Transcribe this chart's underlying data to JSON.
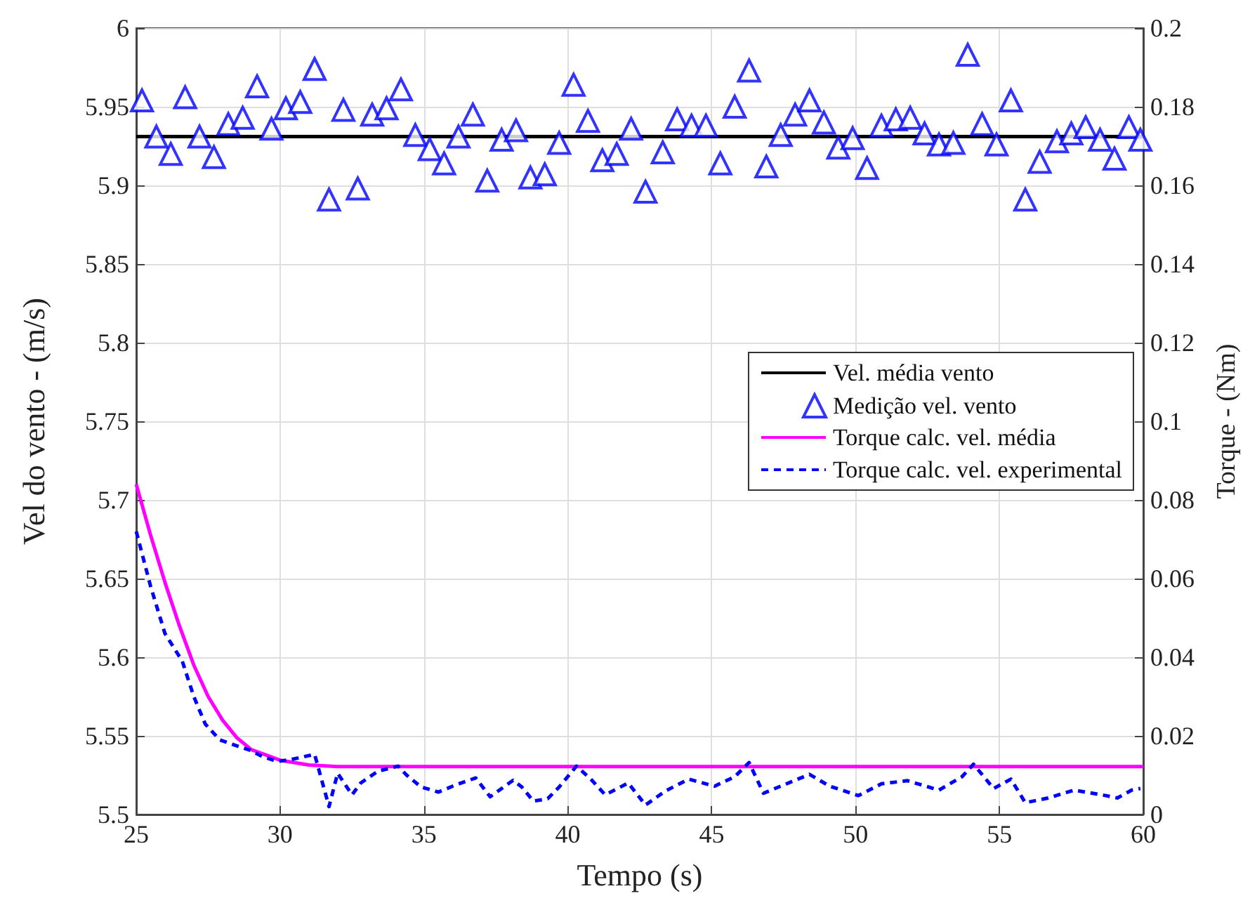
{
  "chart_data": {
    "type": "line",
    "xlabel": "Tempo (s)",
    "ylabel": "Vel do vento - (m/s)",
    "y2label": "Torque - (Nm)",
    "xlim": [
      25,
      60
    ],
    "xticks": [
      25,
      30,
      35,
      40,
      45,
      50,
      55,
      60
    ],
    "ylim": [
      5.5,
      6
    ],
    "yticks": [
      5.5,
      5.55,
      5.6,
      5.65,
      5.7,
      5.75,
      5.8,
      5.85,
      5.9,
      5.95,
      6
    ],
    "y2lim": [
      0,
      0.2
    ],
    "y2ticks": [
      0,
      0.02,
      0.04,
      0.06,
      0.08,
      0.1,
      0.12,
      0.14,
      0.16,
      0.18,
      0.2
    ],
    "grid": true,
    "legend": "right",
    "series": [
      {
        "name": "Vel. média vento",
        "type": "line",
        "color": "#000000",
        "x": [
          25,
          60
        ],
        "values": [
          5.931,
          5.931
        ]
      },
      {
        "name": "Medição vel. vento",
        "type": "scatter",
        "marker": "triangle",
        "color": "#0000ff",
        "x": [
          25.2,
          25.7,
          26.2,
          26.7,
          27.2,
          27.7,
          28.2,
          28.7,
          29.2,
          29.7,
          30.2,
          30.7,
          31.2,
          31.7,
          32.2,
          32.7,
          33.2,
          33.7,
          34.2,
          34.7,
          35.2,
          35.7,
          36.2,
          36.7,
          37.2,
          37.7,
          38.2,
          38.7,
          39.2,
          39.7,
          40.2,
          40.7,
          41.2,
          41.7,
          42.2,
          42.7,
          43.3,
          43.8,
          44.3,
          44.8,
          45.3,
          45.8,
          46.3,
          46.9,
          47.4,
          47.9,
          48.4,
          48.9,
          49.4,
          49.9,
          50.4,
          50.9,
          51.4,
          51.9,
          52.4,
          52.9,
          53.4,
          53.9,
          54.4,
          54.9,
          55.4,
          55.9,
          56.4,
          57.0,
          57.5,
          58.0,
          58.5,
          59.0,
          59.5,
          59.9
        ],
        "values": [
          5.954,
          5.931,
          5.92,
          5.956,
          5.931,
          5.918,
          5.939,
          5.943,
          5.963,
          5.936,
          5.949,
          5.953,
          5.974,
          5.891,
          5.948,
          5.898,
          5.945,
          5.949,
          5.961,
          5.932,
          5.923,
          5.914,
          5.931,
          5.945,
          5.903,
          5.929,
          5.935,
          5.905,
          5.907,
          5.927,
          5.964,
          5.941,
          5.916,
          5.92,
          5.936,
          5.896,
          5.921,
          5.942,
          5.938,
          5.938,
          5.914,
          5.95,
          5.973,
          5.912,
          5.932,
          5.945,
          5.954,
          5.94,
          5.924,
          5.93,
          5.911,
          5.938,
          5.942,
          5.943,
          5.933,
          5.926,
          5.927,
          5.983,
          5.939,
          5.926,
          5.954,
          5.891,
          5.915,
          5.928,
          5.933,
          5.937,
          5.929,
          5.917,
          5.937,
          5.929
        ]
      },
      {
        "name": "Torque calc. vel. média",
        "type": "line",
        "axis": "y2",
        "color": "#ff00ff",
        "x": [
          25,
          25.5,
          26,
          26.5,
          27,
          27.5,
          28,
          28.5,
          29,
          30,
          31,
          32,
          33,
          60
        ],
        "values": [
          0.084,
          0.071,
          0.059,
          0.048,
          0.038,
          0.03,
          0.024,
          0.0195,
          0.0165,
          0.0138,
          0.0126,
          0.0122,
          0.0122,
          0.0122
        ]
      },
      {
        "name": "Torque calc. vel. experimental",
        "type": "line",
        "axis": "y2",
        "line_style": "dashed",
        "color": "#0000ff",
        "x": [
          25,
          25.5,
          26,
          26.6,
          27,
          27.4,
          27.9,
          28.4,
          28.9,
          29.4,
          29.9,
          30.4,
          31.2,
          31.7,
          32,
          32.5,
          32.8,
          33.4,
          34.1,
          34.4,
          34.9,
          35.5,
          36.1,
          36.8,
          37.3,
          38.1,
          38.4,
          38.8,
          39.3,
          39.7,
          40.3,
          40.8,
          41.3,
          42.1,
          42.7,
          43.4,
          44.2,
          45.1,
          45.8,
          46.3,
          46.8,
          47.4,
          48.4,
          49.1,
          50.1,
          50.9,
          51.8,
          52.9,
          53.7,
          54.1,
          54.8,
          55.4,
          55.9,
          56.7,
          57.6,
          58.7,
          59.1,
          59.6,
          59.9
        ],
        "values": [
          0.072,
          0.058,
          0.046,
          0.039,
          0.03,
          0.023,
          0.019,
          0.0177,
          0.0165,
          0.0147,
          0.0135,
          0.014,
          0.0153,
          0.002,
          0.0105,
          0.005,
          0.008,
          0.011,
          0.0123,
          0.01,
          0.007,
          0.0057,
          0.0075,
          0.0093,
          0.0045,
          0.0087,
          0.007,
          0.0034,
          0.004,
          0.007,
          0.0123,
          0.009,
          0.005,
          0.008,
          0.0024,
          0.006,
          0.009,
          0.0072,
          0.0096,
          0.0132,
          0.0054,
          0.0072,
          0.0102,
          0.0072,
          0.0048,
          0.0078,
          0.0086,
          0.0062,
          0.0096,
          0.0128,
          0.0066,
          0.009,
          0.003,
          0.0042,
          0.0062,
          0.0048,
          0.0042,
          0.0062,
          0.0066
        ]
      }
    ]
  }
}
